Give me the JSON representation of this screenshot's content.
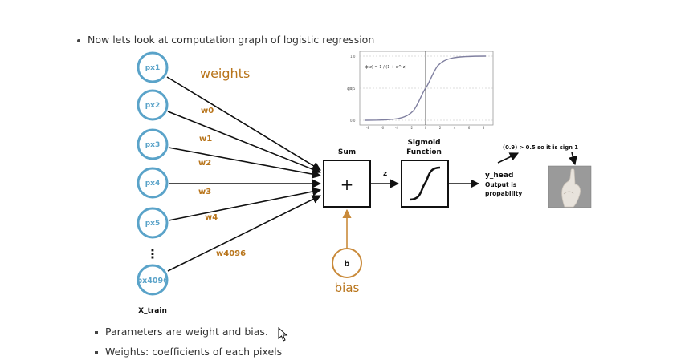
{
  "intro_text": "Now lets look at computation graph of logistic regression",
  "weights_title": "weights",
  "inputs": [
    {
      "label": "px1",
      "weight": "w0"
    },
    {
      "label": "px2",
      "weight": "w1"
    },
    {
      "label": "px3",
      "weight": "w2"
    },
    {
      "label": "px4",
      "weight": "w3"
    },
    {
      "label": "px5",
      "weight": "w4"
    },
    {
      "label": "px4096",
      "weight": "w4096"
    }
  ],
  "ellipsis": "⋮",
  "x_train_label": "X_train",
  "sum_label": "Sum",
  "sum_symbol": "+",
  "z_label": "z",
  "sigmoid_label_line1": "Sigmoid",
  "sigmoid_label_line2": "Function",
  "bias_node": "b",
  "bias_label": "bias",
  "yhead_line1": "y_head",
  "yhead_line2": "Output is",
  "yhead_line3": "propability",
  "threshold_text": "(0.9) > 0.5 so it is sign 1",
  "sigmoid_plot": {
    "formula": "ϕ(z) = 1 / (1 + e^-z)",
    "y_ticks": [
      "1.0",
      "0.5",
      "0.0"
    ],
    "x_ticks": [
      "-8",
      "-6",
      "-4",
      "-2",
      "0",
      "2",
      "4",
      "6",
      "8"
    ],
    "ylabel": "ϕ(z)"
  },
  "notes": [
    "Parameters are weight and bias.",
    "Weights: coefficients of each pixels"
  ],
  "colors": {
    "node_stroke": "#5aa3c9",
    "weight_text": "#b8741a",
    "bias_stroke": "#c98a3a",
    "curve": "#8080a0"
  }
}
